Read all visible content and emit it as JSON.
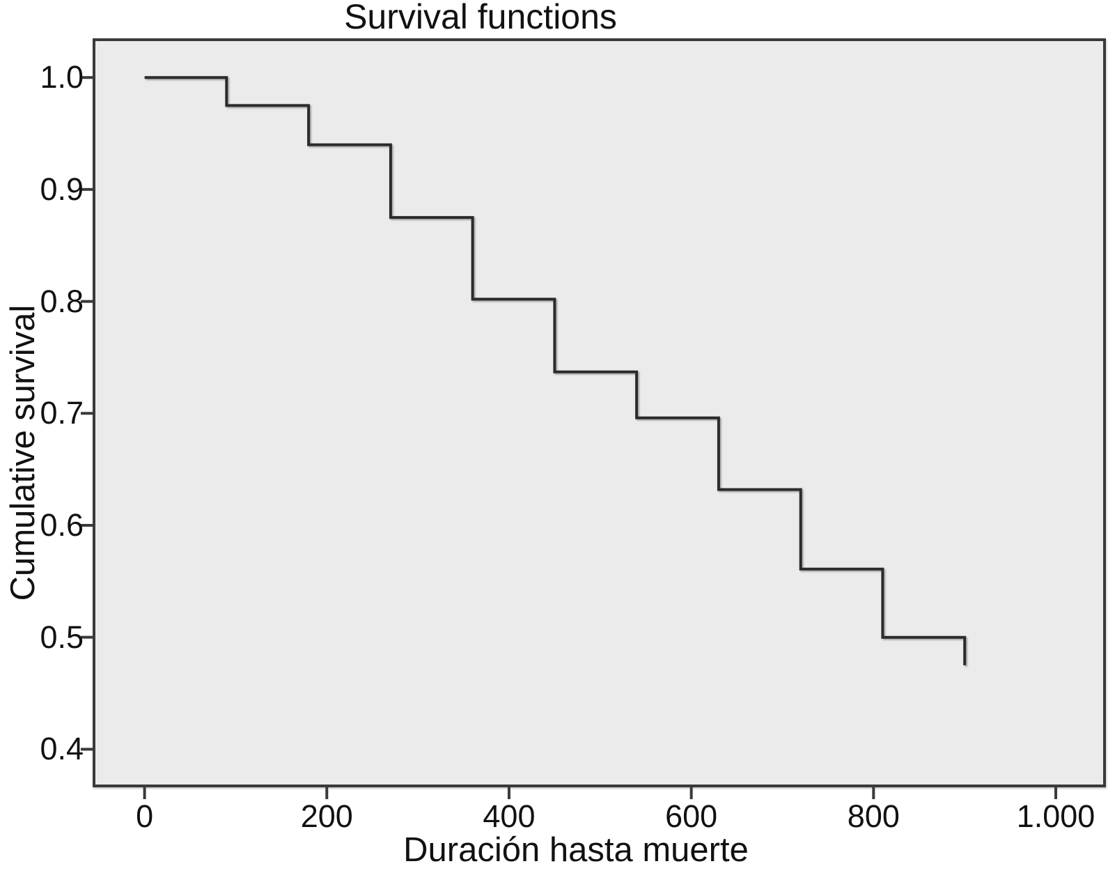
{
  "title": "Survival functions",
  "colors": {
    "page_background": "#ffffff",
    "plot_background": "#ebebeb",
    "frame": "#3a3a3a",
    "curve": "#2b2b2b",
    "tick": "#3a3a3a",
    "text": "#111111"
  },
  "chart_data": {
    "type": "line",
    "subtype": "step-survival-kaplan-meier",
    "title": "Survival functions",
    "xlabel": "Duración hasta muerte",
    "ylabel": "Cumulative survival",
    "grid": false,
    "legend": "none",
    "xlim": [
      -57,
      1055
    ],
    "ylim": [
      0.366,
      1.035
    ],
    "x_ticks": [
      0,
      200,
      400,
      600,
      800,
      1000
    ],
    "x_tick_labels": [
      "0",
      "200",
      "400",
      "600",
      "800",
      "1.000"
    ],
    "y_ticks": [
      1.0,
      0.9,
      0.8,
      0.7,
      0.6,
      0.5,
      0.4
    ],
    "y_tick_labels": [
      "1.0",
      "0.9",
      "0.8",
      "0.7",
      "0.6",
      "0.5",
      "0.4"
    ],
    "series": [
      {
        "name": "Survival function",
        "x": [
          0,
          90,
          180,
          270,
          360,
          450,
          540,
          630,
          720,
          810,
          900
        ],
        "y": [
          1.0,
          0.975,
          0.94,
          0.875,
          0.802,
          0.737,
          0.696,
          0.632,
          0.561,
          0.5,
          0.475
        ]
      }
    ]
  }
}
